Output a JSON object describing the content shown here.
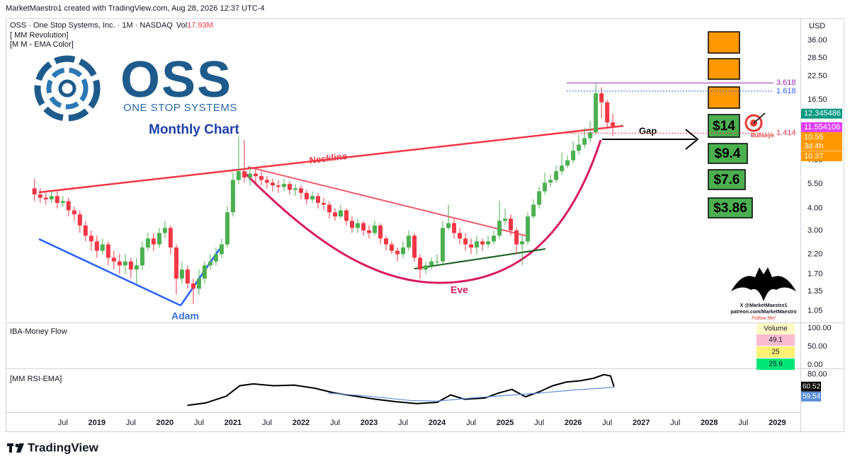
{
  "header": {
    "credit": "MarketMaestro1 created with TradingView.com, Aug 28, 2026 12:37 UTC-4",
    "brand": "TradingView"
  },
  "logo": {
    "name": "OSS",
    "tagline": "ONE STOP SYSTEMS"
  },
  "watermark": [
    "X @MarketMaestro1",
    "patreon.com/MarketMaestro",
    "Follow Me!"
  ],
  "chart_data": [
    {
      "type": "candlestick",
      "title": "OSS · One Stop Systems, Inc. · 1M · NASDAQ",
      "volume_label": "Vol",
      "volume": "17.93M",
      "indicators": [
        "[ MM Revolution]",
        "[M M - EMA Color]"
      ],
      "currency": "USD",
      "log_scale": true,
      "grid": false,
      "up_color": "#4caf50",
      "down_color": "#f23645",
      "xlim": [
        2017.68,
        2029.34
      ],
      "ylim": [
        0.91,
        47
      ],
      "xticks": [
        {
          "value": 2018.5,
          "label": "Jul"
        },
        2019,
        {
          "value": 2019.5,
          "label": "Jul"
        },
        2020,
        {
          "value": 2020.5,
          "label": "Jul"
        },
        2021,
        {
          "value": 2021.5,
          "label": "Jul"
        },
        2022,
        {
          "value": 2022.5,
          "label": "Jul"
        },
        2023,
        {
          "value": 2023.5,
          "label": "Jul"
        },
        2024,
        {
          "value": 2024.5,
          "label": "Jul"
        },
        2025,
        {
          "value": 2025.5,
          "label": "Jul"
        },
        2026,
        {
          "value": 2026.5,
          "label": "Jul"
        },
        2027,
        {
          "value": 2027.5,
          "label": "Jul"
        },
        2028,
        {
          "value": 2028.5,
          "label": "Jul"
        },
        2029
      ],
      "yticks": [
        {
          "value": 36,
          "label": "36.00"
        },
        {
          "value": 28.5,
          "label": "28.50"
        },
        {
          "value": 22.5,
          "label": "22.50"
        },
        {
          "value": 16.5,
          "label": "16.50"
        },
        {
          "value": 7.5,
          "label": "7.50"
        },
        {
          "value": 5.5,
          "label": "5.50"
        },
        {
          "value": 4,
          "label": "4.00"
        },
        {
          "value": 3,
          "label": "3.00"
        },
        {
          "value": 2.2,
          "label": "2.20"
        },
        {
          "value": 1.7,
          "label": "1.70"
        },
        {
          "value": 1.35,
          "label": "1.35"
        },
        {
          "value": 1.05,
          "label": "1.05"
        }
      ],
      "x": [
        2018.083,
        2018.167,
        2018.25,
        2018.333,
        2018.417,
        2018.5,
        2018.583,
        2018.667,
        2018.75,
        2018.833,
        2018.917,
        2019,
        2019.083,
        2019.167,
        2019.25,
        2019.333,
        2019.417,
        2019.5,
        2019.583,
        2019.667,
        2019.75,
        2019.833,
        2019.917,
        2020,
        2020.083,
        2020.167,
        2020.25,
        2020.333,
        2020.417,
        2020.5,
        2020.583,
        2020.667,
        2020.75,
        2020.833,
        2020.917,
        2021,
        2021.083,
        2021.167,
        2021.25,
        2021.333,
        2021.417,
        2021.5,
        2021.583,
        2021.667,
        2021.75,
        2021.833,
        2021.917,
        2022,
        2022.083,
        2022.167,
        2022.25,
        2022.333,
        2022.417,
        2022.5,
        2022.583,
        2022.667,
        2022.75,
        2022.833,
        2022.917,
        2023,
        2023.083,
        2023.167,
        2023.25,
        2023.333,
        2023.417,
        2023.5,
        2023.583,
        2023.667,
        2023.75,
        2023.833,
        2023.917,
        2024,
        2024.083,
        2024.167,
        2024.25,
        2024.333,
        2024.417,
        2024.5,
        2024.583,
        2024.667,
        2024.75,
        2024.833,
        2024.917,
        2025,
        2025.083,
        2025.167,
        2025.25,
        2025.333,
        2025.417,
        2025.5,
        2025.583,
        2025.667,
        2025.75,
        2025.833,
        2025.917,
        2026,
        2026.083,
        2026.167,
        2026.25,
        2026.333,
        2026.417,
        2026.5,
        2026.583
      ],
      "open": [
        5.2,
        4.8,
        4.6,
        4.5,
        4.7,
        4.3,
        4.4,
        3.9,
        3.7,
        3.2,
        2.8,
        2.6,
        2.3,
        2.5,
        2.1,
        2.0,
        1.9,
        2.0,
        1.8,
        1.9,
        2.4,
        2.7,
        2.5,
        2.9,
        3.1,
        2.4,
        1.6,
        1.8,
        1.5,
        1.4,
        1.6,
        1.9,
        2.0,
        2.2,
        2.5,
        3.8,
        5.8,
        6.5,
        6.0,
        6.3,
        6.1,
        5.8,
        5.6,
        5.4,
        5.3,
        5.5,
        5.1,
        5.2,
        4.9,
        4.5,
        4.7,
        4.3,
        4.2,
        3.8,
        3.6,
        3.9,
        3.4,
        3.1,
        3.3,
        3.0,
        2.9,
        3.2,
        2.7,
        2.5,
        2.3,
        2.2,
        2.4,
        2.8,
        2.1,
        1.8,
        1.9,
        2.0,
        2.0,
        3.1,
        3.3,
        2.9,
        2.7,
        2.5,
        2.4,
        2.6,
        2.5,
        2.6,
        2.8,
        3.4,
        3.5,
        3.0,
        2.5,
        2.6,
        3.6,
        4.2,
        5.0,
        5.6,
        5.8,
        6.5,
        7.0,
        7.5,
        8.5,
        9.2,
        10.0,
        10.8,
        18.0,
        16.0,
        12.3
      ],
      "high": [
        5.9,
        5.2,
        4.9,
        5.0,
        5.0,
        4.7,
        4.6,
        4.1,
        3.9,
        3.4,
        3.0,
        2.8,
        2.7,
        2.6,
        2.3,
        2.2,
        2.2,
        2.1,
        2.1,
        2.6,
        2.9,
        2.9,
        3.1,
        3.4,
        3.2,
        2.5,
        2.0,
        1.9,
        1.6,
        1.8,
        2.0,
        2.2,
        2.4,
        2.7,
        4.1,
        6.4,
        10.2,
        9.8,
        6.9,
        6.7,
        6.5,
        6.1,
        5.9,
        5.8,
        5.9,
        5.7,
        5.5,
        5.4,
        5.1,
        5.0,
        4.9,
        4.6,
        4.4,
        4.0,
        4.2,
        4.0,
        3.6,
        3.5,
        3.4,
        3.2,
        3.4,
        3.3,
        2.8,
        2.6,
        2.4,
        2.6,
        3.0,
        2.9,
        2.2,
        2.0,
        2.1,
        2.2,
        3.4,
        4.2,
        3.5,
        3.1,
        2.9,
        2.7,
        2.8,
        2.7,
        2.8,
        3.0,
        4.4,
        4.0,
        3.7,
        3.1,
        2.8,
        3.8,
        4.5,
        5.3,
        6.4,
        6.2,
        7.0,
        8.3,
        8.0,
        9.6,
        10.5,
        11.5,
        12.5,
        20.5,
        19.5,
        16.5,
        13.8
      ],
      "low": [
        4.4,
        4.3,
        4.2,
        4.3,
        4.0,
        4.1,
        3.6,
        3.4,
        2.9,
        2.6,
        2.3,
        2.1,
        2.2,
        1.9,
        1.8,
        1.7,
        1.7,
        1.6,
        1.5,
        1.8,
        2.3,
        2.3,
        2.4,
        2.7,
        2.2,
        1.3,
        1.5,
        1.4,
        1.15,
        1.3,
        1.5,
        1.8,
        1.9,
        2.1,
        2.4,
        3.6,
        5.5,
        5.6,
        5.4,
        5.6,
        5.4,
        5.2,
        5.0,
        4.9,
        5.0,
        4.8,
        4.7,
        4.5,
        4.2,
        4.3,
        4.0,
        3.9,
        3.5,
        3.4,
        3.5,
        3.2,
        2.9,
        2.9,
        2.8,
        2.7,
        2.8,
        2.5,
        2.3,
        2.2,
        2.0,
        2.1,
        2.3,
        2.0,
        1.6,
        1.7,
        1.8,
        1.9,
        1.9,
        3.0,
        2.7,
        2.5,
        2.3,
        2.2,
        2.2,
        2.3,
        2.4,
        2.5,
        2.7,
        3.2,
        2.8,
        2.2,
        1.9,
        2.5,
        3.5,
        4.0,
        4.8,
        5.3,
        5.6,
        6.2,
        6.8,
        7.2,
        8.1,
        8.8,
        9.5,
        10.5,
        13.0,
        11.5,
        10.3
      ],
      "close": [
        4.8,
        4.6,
        4.5,
        4.7,
        4.3,
        4.4,
        3.9,
        3.7,
        3.2,
        2.8,
        2.6,
        2.3,
        2.5,
        2.1,
        2.0,
        1.9,
        2.0,
        1.8,
        1.9,
        2.4,
        2.7,
        2.5,
        2.9,
        3.1,
        2.4,
        1.6,
        1.8,
        1.5,
        1.4,
        1.6,
        1.9,
        2.0,
        2.2,
        2.5,
        3.8,
        5.8,
        6.5,
        6.0,
        6.3,
        6.1,
        5.8,
        5.6,
        5.4,
        5.3,
        5.5,
        5.1,
        5.2,
        4.9,
        4.5,
        4.7,
        4.3,
        4.2,
        3.8,
        3.6,
        3.9,
        3.4,
        3.1,
        3.3,
        3.0,
        2.9,
        3.2,
        2.7,
        2.5,
        2.3,
        2.2,
        2.4,
        2.8,
        2.1,
        1.8,
        1.9,
        2.0,
        2.0,
        3.1,
        3.3,
        2.9,
        2.7,
        2.5,
        2.4,
        2.6,
        2.5,
        2.6,
        2.8,
        3.4,
        3.5,
        3.0,
        2.5,
        2.6,
        3.6,
        4.2,
        5.0,
        5.6,
        5.8,
        6.5,
        7.0,
        7.5,
        8.5,
        9.2,
        10.0,
        10.8,
        18.0,
        16.0,
        12.3,
        11.55
      ],
      "price_labels": [
        {
          "value": 12.345486,
          "color": "#089981"
        },
        {
          "value": 11.554106,
          "color": "#e040fb"
        },
        {
          "value": 10.55,
          "color": "#ff9800",
          "countdown": "3d 4h"
        },
        {
          "value": 10.37,
          "color": "#ff9800"
        }
      ],
      "fib_levels": [
        {
          "ratio": 3.618,
          "price": 20.6,
          "color": "#9c27b0",
          "style": "solid"
        },
        {
          "ratio": 1.618,
          "price": 18.5,
          "color": "#2962ff",
          "style": "dotted"
        },
        {
          "ratio": 1.414,
          "price": 10.7,
          "color": "#f23645",
          "style": "dotted"
        }
      ],
      "annotations": {
        "period": "Monthly Chart",
        "neckline": "Neckline",
        "adam": "Adam",
        "eve": "Eve",
        "gap": "Gap",
        "bullseye": "Bullseye",
        "targets": [
          "$14",
          "$9.4",
          "$7.6",
          "$3.86"
        ]
      }
    },
    {
      "type": "indicator",
      "title": "IBA-Money Flow",
      "ylim": [
        -7.7,
        111.5
      ],
      "yticks": [
        {
          "value": 100,
          "label": "100.00"
        },
        {
          "value": 50,
          "label": "50.00"
        },
        {
          "value": 0,
          "label": "0.00"
        }
      ],
      "legend_title": "Volume",
      "legend_values": [
        49.1,
        25,
        25.9
      ],
      "legend_colors": [
        "#f8bbd0",
        "#fff176",
        "#00e676"
      ]
    },
    {
      "type": "line",
      "title": "[MM RSI-EMA]",
      "xlim": [
        2017.68,
        2029.34
      ],
      "ylim": [
        20,
        89
      ],
      "yticks": [
        {
          "value": 80,
          "label": "80.00"
        }
      ],
      "series": [
        {
          "color": "#000000",
          "x": [
            2020.33,
            2020.6,
            2020.9,
            2021.1,
            2021.3,
            2021.6,
            2021.9,
            2022.2,
            2022.5,
            2022.8,
            2023.1,
            2023.4,
            2023.7,
            2024.0,
            2024.2,
            2024.4,
            2024.7,
            2024.9,
            2025.1,
            2025.3,
            2025.5,
            2025.7,
            2025.9,
            2026.1,
            2026.3,
            2026.45,
            2026.55,
            2026.6
          ],
          "values": [
            30,
            34,
            45,
            62,
            65,
            62,
            63,
            58,
            50,
            45,
            40,
            36,
            33,
            35,
            47,
            40,
            42,
            50,
            56,
            44,
            52,
            62,
            68,
            70,
            74,
            80,
            78,
            60.52
          ]
        },
        {
          "color": "#5b8fd9",
          "x": [
            2022.4,
            2023.0,
            2023.6,
            2024.0,
            2024.5,
            2025.0,
            2025.5,
            2026.0,
            2026.4,
            2026.6
          ],
          "values": [
            50,
            45,
            38,
            37,
            42,
            46,
            50,
            55,
            58,
            59.54
          ]
        }
      ]
    }
  ]
}
